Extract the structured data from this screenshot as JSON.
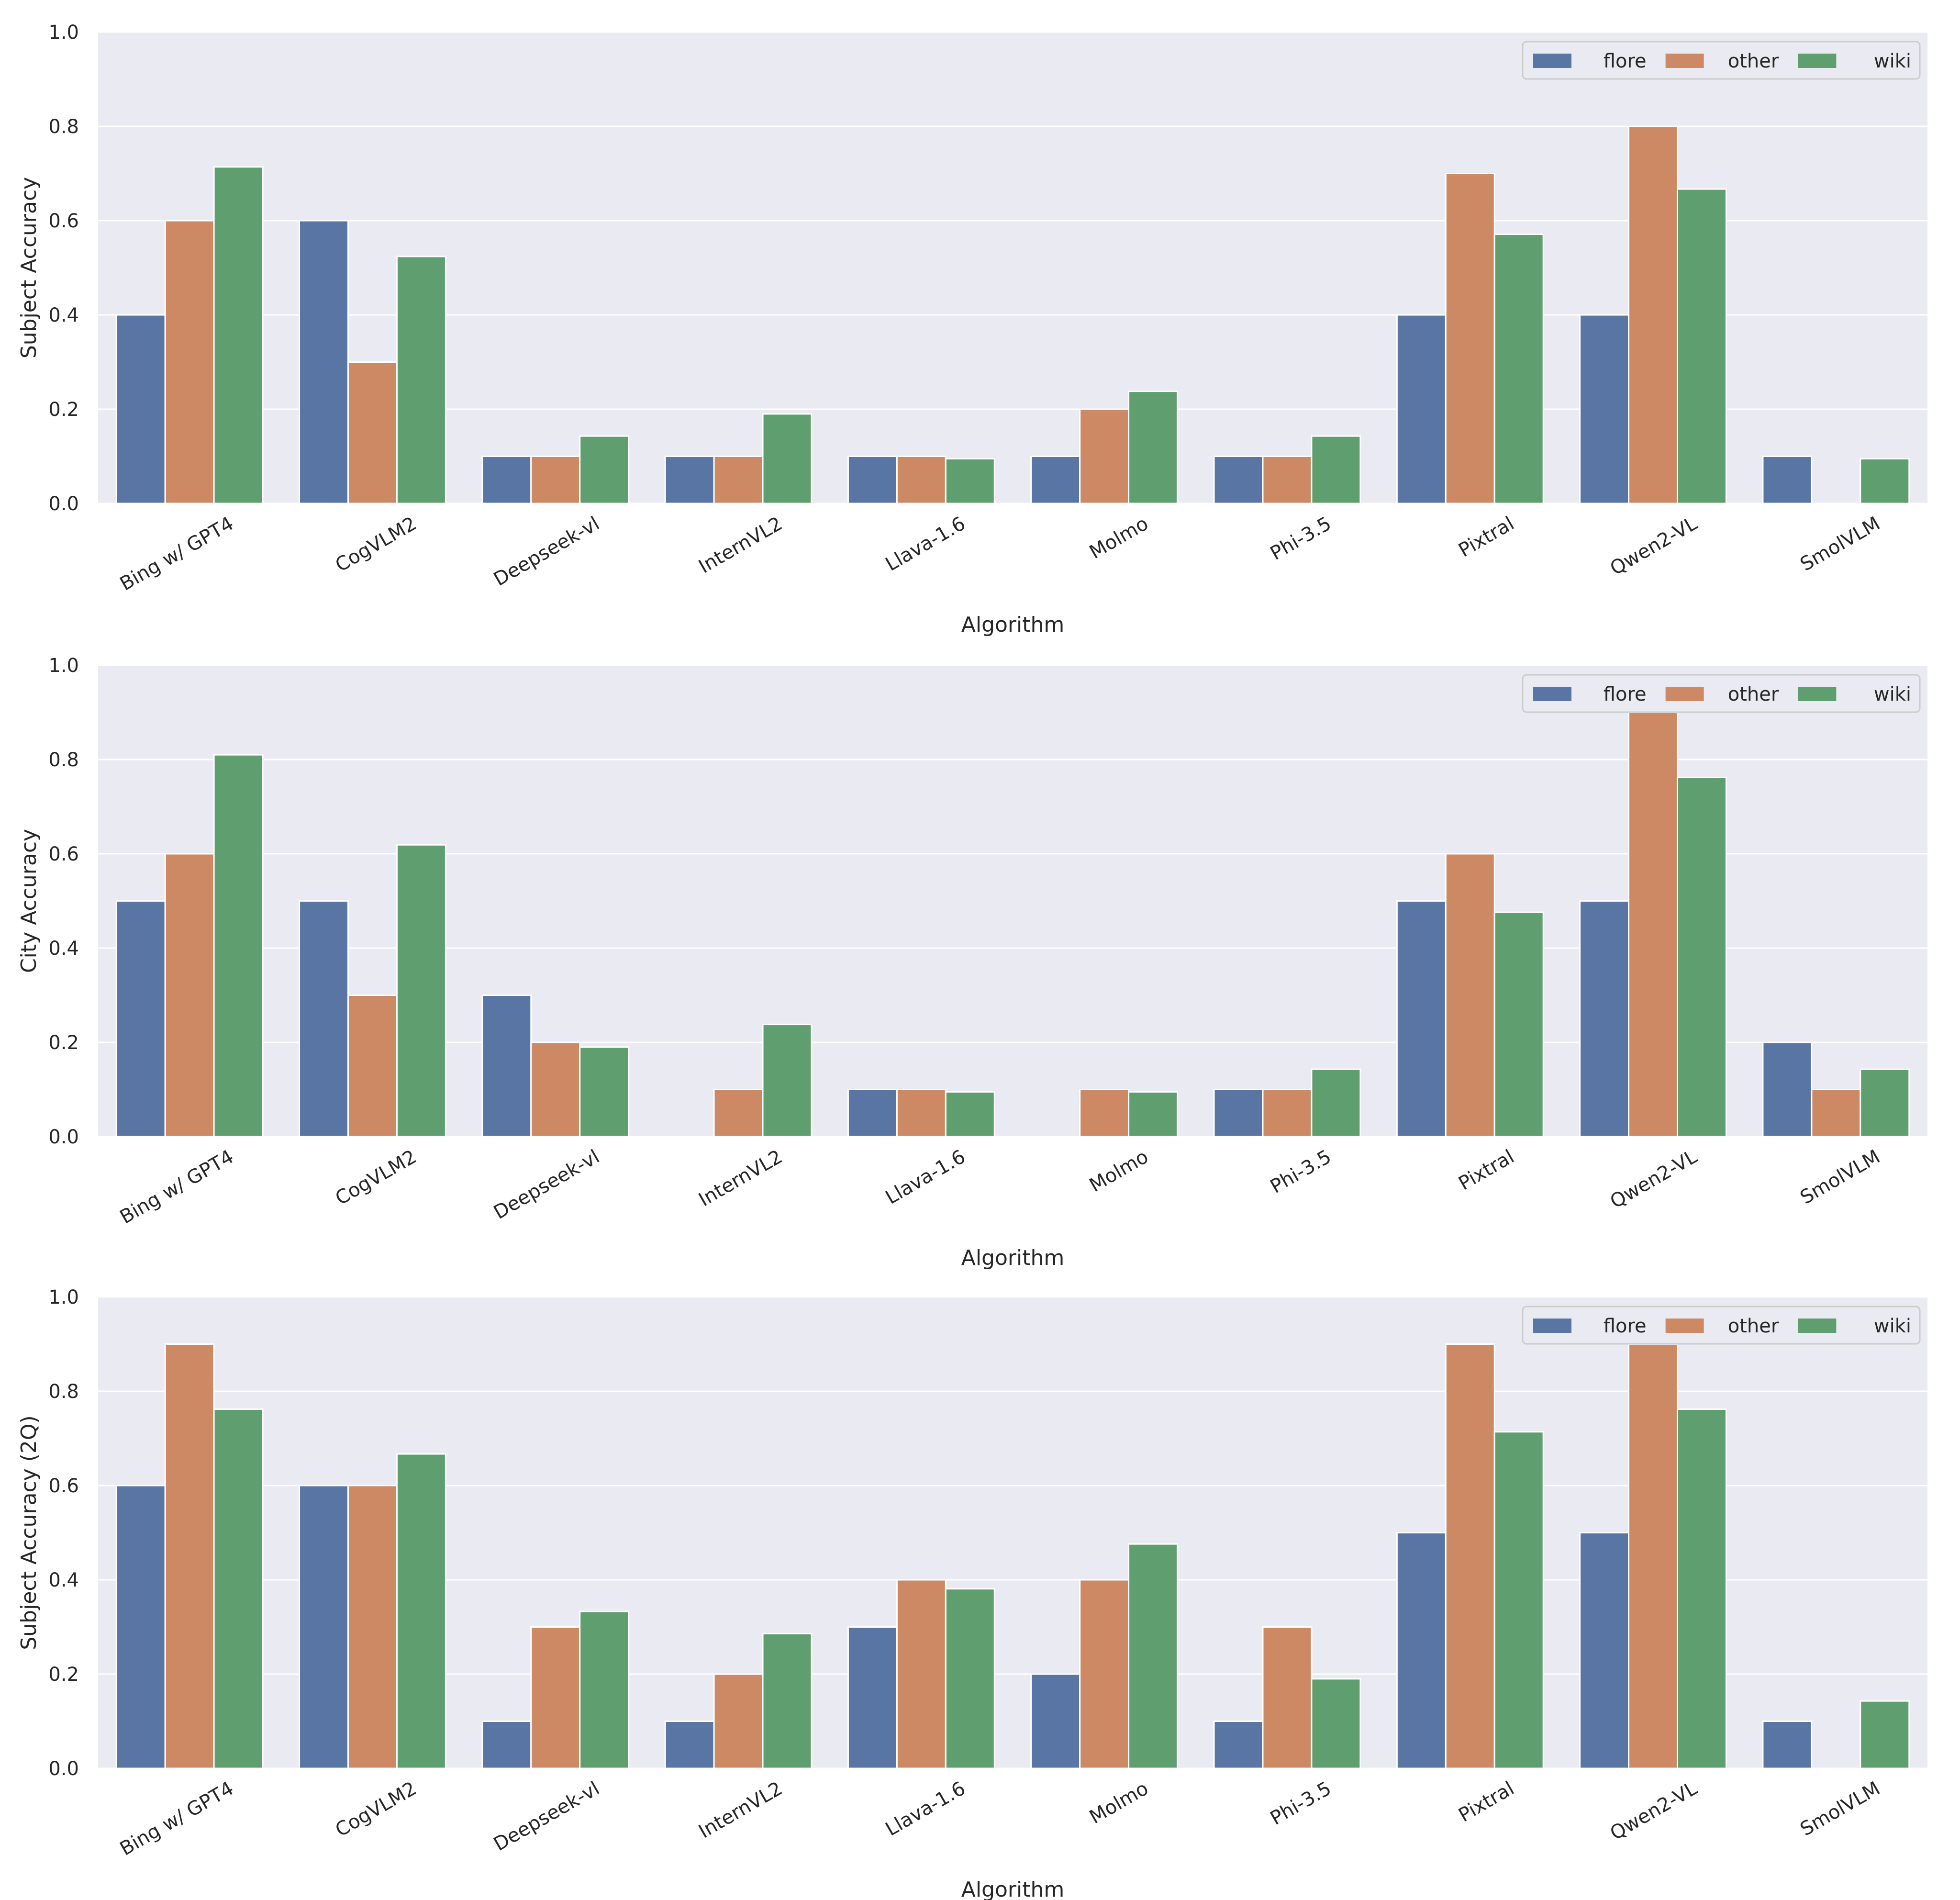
{
  "colors": {
    "flore": "#5975a4",
    "other": "#cc8963",
    "wiki": "#5f9e6e",
    "panel_bg": "#eaeaf2",
    "grid": "#ffffff"
  },
  "chart_data": [
    {
      "type": "bar",
      "title": "",
      "xlabel": "Algorithm",
      "ylabel": "Subject Accuracy",
      "ylim": [
        0,
        1.0
      ],
      "yticks": [
        "0.0",
        "0.2",
        "0.4",
        "0.6",
        "0.8",
        "1.0"
      ],
      "legend": "top-right",
      "categories": [
        "Bing w/ GPT4",
        "CogVLM2",
        "Deepseek-vl",
        "InternVL2",
        "Llava-1.6",
        "Molmo",
        "Phi-3.5",
        "Pixtral",
        "Qwen2-VL",
        "SmolVLM"
      ],
      "series": [
        {
          "name": "flore",
          "values": [
            0.4,
            0.6,
            0.1,
            0.1,
            0.1,
            0.1,
            0.1,
            0.4,
            0.4,
            0.1
          ]
        },
        {
          "name": "other",
          "values": [
            0.6,
            0.3,
            0.1,
            0.1,
            0.1,
            0.2,
            0.1,
            0.7,
            0.8,
            0.0
          ]
        },
        {
          "name": "wiki",
          "values": [
            0.714,
            0.524,
            0.143,
            0.19,
            0.095,
            0.238,
            0.143,
            0.571,
            0.667,
            0.095
          ]
        }
      ]
    },
    {
      "type": "bar",
      "title": "",
      "xlabel": "Algorithm",
      "ylabel": "City Accuracy",
      "ylim": [
        0,
        1.0
      ],
      "yticks": [
        "0.0",
        "0.2",
        "0.4",
        "0.6",
        "0.8",
        "1.0"
      ],
      "legend": "top-right",
      "categories": [
        "Bing w/ GPT4",
        "CogVLM2",
        "Deepseek-vl",
        "InternVL2",
        "Llava-1.6",
        "Molmo",
        "Phi-3.5",
        "Pixtral",
        "Qwen2-VL",
        "SmolVLM"
      ],
      "series": [
        {
          "name": "flore",
          "values": [
            0.5,
            0.5,
            0.3,
            0.0,
            0.1,
            0.0,
            0.1,
            0.5,
            0.5,
            0.2
          ]
        },
        {
          "name": "other",
          "values": [
            0.6,
            0.3,
            0.2,
            0.1,
            0.1,
            0.1,
            0.1,
            0.6,
            0.9,
            0.1
          ]
        },
        {
          "name": "wiki",
          "values": [
            0.81,
            0.619,
            0.19,
            0.238,
            0.095,
            0.095,
            0.143,
            0.476,
            0.762,
            0.143
          ]
        }
      ]
    },
    {
      "type": "bar",
      "title": "",
      "xlabel": "Algorithm",
      "ylabel": "Subject Accuracy (2Q)",
      "ylim": [
        0,
        1.0
      ],
      "yticks": [
        "0.0",
        "0.2",
        "0.4",
        "0.6",
        "0.8",
        "1.0"
      ],
      "legend": "top-right",
      "categories": [
        "Bing w/ GPT4",
        "CogVLM2",
        "Deepseek-vl",
        "InternVL2",
        "Llava-1.6",
        "Molmo",
        "Phi-3.5",
        "Pixtral",
        "Qwen2-VL",
        "SmolVLM"
      ],
      "series": [
        {
          "name": "flore",
          "values": [
            0.6,
            0.6,
            0.1,
            0.1,
            0.3,
            0.2,
            0.1,
            0.5,
            0.5,
            0.1
          ]
        },
        {
          "name": "other",
          "values": [
            0.9,
            0.6,
            0.3,
            0.2,
            0.4,
            0.4,
            0.3,
            0.9,
            0.9,
            0.0
          ]
        },
        {
          "name": "wiki",
          "values": [
            0.762,
            0.667,
            0.333,
            0.286,
            0.381,
            0.476,
            0.19,
            0.714,
            0.762,
            0.143
          ]
        }
      ]
    }
  ]
}
